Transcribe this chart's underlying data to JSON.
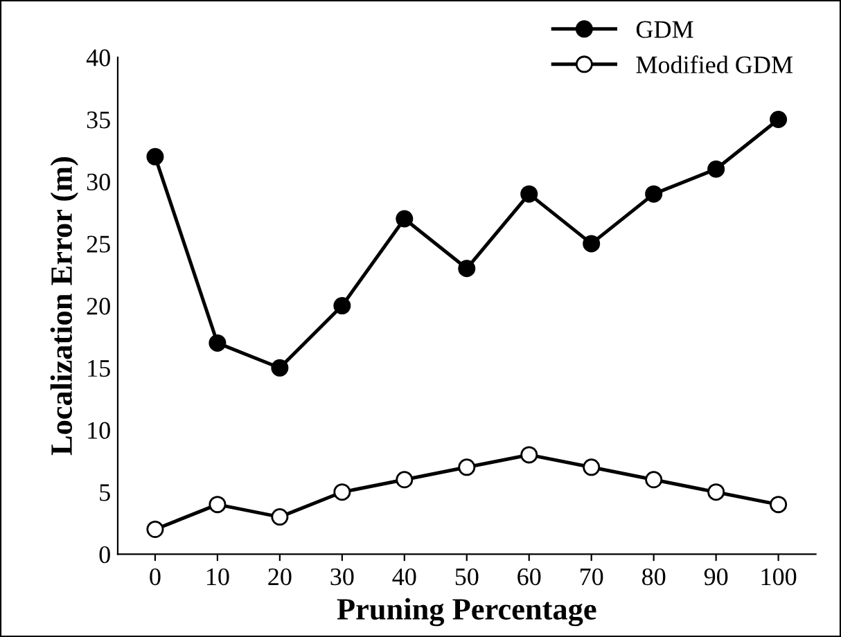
{
  "chart_data": {
    "type": "line",
    "xlabel": "Pruning Percentage",
    "ylabel": "Localization Error (m)",
    "categories": [
      "0",
      "10",
      "20",
      "30",
      "40",
      "50",
      "60",
      "70",
      "80",
      "90",
      "100"
    ],
    "series": [
      {
        "name": "GDM",
        "color": "#000000",
        "values": [
          32,
          17,
          15,
          20,
          27,
          23,
          29,
          25,
          29,
          31,
          35
        ]
      },
      {
        "name": "Modified GDM",
        "color": "#000000",
        "values": [
          2,
          4,
          3,
          5,
          6,
          7,
          8,
          7,
          6,
          5,
          4
        ]
      }
    ],
    "ylim": [
      0,
      40
    ],
    "yticks": [
      0,
      5,
      10,
      15,
      20,
      25,
      30,
      35,
      40
    ],
    "grid": false,
    "marker": "circle",
    "legend": "top right",
    "line_style": "solid"
  }
}
